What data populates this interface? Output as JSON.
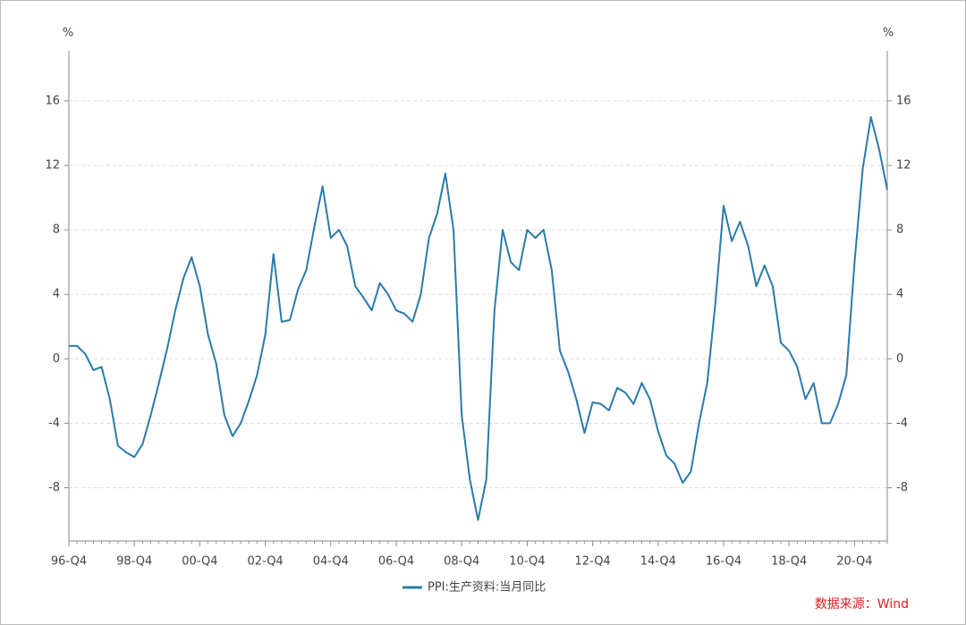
{
  "chart_data": {
    "type": "line",
    "y_unit": "%",
    "legend": "PPI:生产资料:当月同比",
    "source": "数据来源：Wind",
    "categories": [
      "96-Q4",
      null,
      null,
      null,
      null,
      null,
      null,
      null,
      "98-Q4",
      null,
      null,
      null,
      null,
      null,
      null,
      null,
      "00-Q4",
      null,
      null,
      null,
      null,
      null,
      null,
      null,
      "02-Q4",
      null,
      null,
      null,
      null,
      null,
      null,
      null,
      "04-Q4",
      null,
      null,
      null,
      null,
      null,
      null,
      null,
      "06-Q4",
      null,
      null,
      null,
      null,
      null,
      null,
      null,
      "08-Q4",
      null,
      null,
      null,
      null,
      null,
      null,
      null,
      "10-Q4",
      null,
      null,
      null,
      null,
      null,
      null,
      null,
      "12-Q4",
      null,
      null,
      null,
      null,
      null,
      null,
      null,
      "14-Q4",
      null,
      null,
      null,
      null,
      null,
      null,
      null,
      "16-Q4",
      null,
      null,
      null,
      null,
      null,
      null,
      null,
      "18-Q4",
      null,
      null,
      null,
      null,
      null,
      null,
      null,
      "20-Q4",
      null,
      null,
      null,
      null
    ],
    "series": [
      {
        "name": "PPI:生产资料:当月同比",
        "color": "#2a7bab",
        "values": [
          0.8,
          0.8,
          0.3,
          -0.7,
          -0.5,
          -2.5,
          -5.4,
          -5.8,
          -6.1,
          -5.3,
          -3.5,
          -1.5,
          0.6,
          3.0,
          5.0,
          6.3,
          4.5,
          1.5,
          -0.3,
          -3.5,
          -4.8,
          -4.0,
          -2.6,
          -1.0,
          1.5,
          6.5,
          2.3,
          2.4,
          4.3,
          5.5,
          8.2,
          10.7,
          7.5,
          8.0,
          7.0,
          4.5,
          3.8,
          3.0,
          4.7,
          4.0,
          3.0,
          2.8,
          2.3,
          4.0,
          7.5,
          9.0,
          11.5,
          8.0,
          -3.5,
          -7.5,
          -10.0,
          -7.5,
          3.0,
          8.0,
          6.0,
          5.5,
          8.0,
          7.5,
          8.0,
          5.5,
          0.5,
          -0.8,
          -2.5,
          -4.6,
          -2.7,
          -2.8,
          -3.2,
          -1.8,
          -2.1,
          -2.8,
          -1.5,
          -2.5,
          -4.5,
          -6.0,
          -6.5,
          -7.7,
          -7.0,
          -4.0,
          -1.5,
          3.5,
          9.5,
          7.3,
          8.5,
          7.0,
          4.5,
          5.8,
          4.5,
          1.0,
          0.5,
          -0.5,
          -2.5,
          -1.5,
          -4.0,
          -4.0,
          -2.8,
          -1.0,
          6.0,
          11.8,
          15.0,
          13.0,
          10.5
        ]
      }
    ],
    "ylim": [
      -11.3,
      19.1
    ],
    "yticks": [
      -8,
      -4,
      0,
      4,
      8,
      12,
      16
    ],
    "grid": true
  }
}
